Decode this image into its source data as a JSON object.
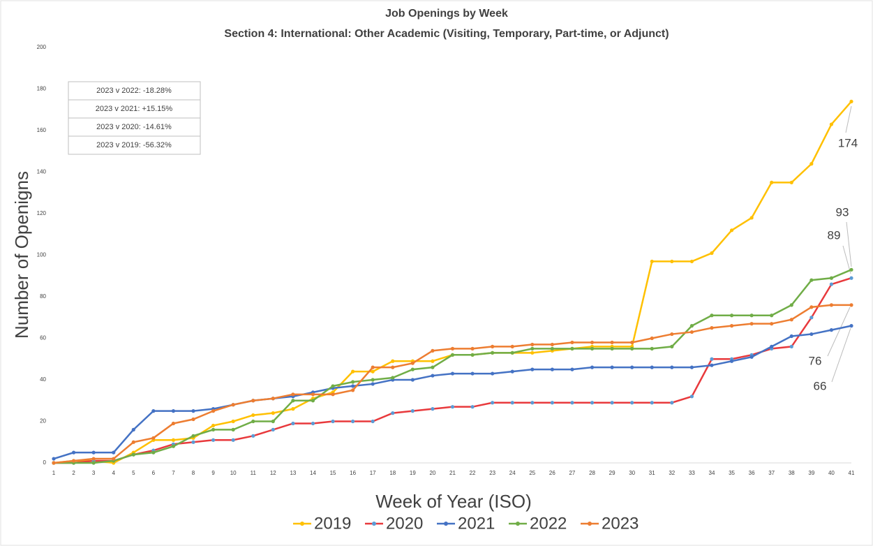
{
  "chart_data": {
    "type": "line",
    "title": "Job Openings by Week",
    "subtitle": "Section 4: International: Other Academic (Visiting, Temporary, Part-time, or Adjunct)",
    "x_label": "Week of Year (ISO)",
    "y_label": "Number of Openigns",
    "categories": [
      "1",
      "2",
      "3",
      "4",
      "5",
      "6",
      "7",
      "8",
      "9",
      "10",
      "11",
      "12",
      "13",
      "14",
      "15",
      "16",
      "17",
      "18",
      "19",
      "20",
      "21",
      "22",
      "23",
      "24",
      "25",
      "26",
      "27",
      "28",
      "29",
      "30",
      "31",
      "32",
      "33",
      "34",
      "35",
      "36",
      "37",
      "38",
      "39",
      "40",
      "41"
    ],
    "series": [
      {
        "name": "2019",
        "color": "#ffc000",
        "values": [
          0,
          1,
          1,
          0,
          5,
          11,
          11,
          12,
          18,
          20,
          23,
          24,
          26,
          31,
          34,
          44,
          44,
          49,
          49,
          49,
          52,
          52,
          53,
          53,
          53,
          54,
          55,
          56,
          56,
          56,
          97,
          97,
          97,
          101,
          112,
          118,
          135,
          135,
          144,
          163,
          174
        ]
      },
      {
        "name": "2020",
        "color": "#e8393c",
        "marker_color": "#5b9bd5",
        "values": [
          0,
          0,
          1,
          1,
          4,
          6,
          9,
          10,
          11,
          11,
          13,
          16,
          19,
          19,
          20,
          20,
          20,
          24,
          25,
          26,
          27,
          27,
          29,
          29,
          29,
          29,
          29,
          29,
          29,
          29,
          29,
          29,
          32,
          50,
          50,
          52,
          55,
          56,
          70,
          86,
          89
        ]
      },
      {
        "name": "2021",
        "color": "#4472c4",
        "values": [
          2,
          5,
          5,
          5,
          16,
          25,
          25,
          25,
          26,
          28,
          30,
          31,
          32,
          34,
          36,
          37,
          38,
          40,
          40,
          42,
          43,
          43,
          43,
          44,
          45,
          45,
          45,
          46,
          46,
          46,
          46,
          46,
          46,
          47,
          49,
          51,
          56,
          61,
          62,
          64,
          66
        ]
      },
      {
        "name": "2022",
        "color": "#70ad47",
        "values": [
          0,
          0,
          0,
          1,
          4,
          5,
          8,
          13,
          16,
          16,
          20,
          20,
          30,
          30,
          37,
          39,
          40,
          41,
          45,
          46,
          52,
          52,
          53,
          53,
          55,
          55,
          55,
          55,
          55,
          55,
          55,
          56,
          66,
          71,
          71,
          71,
          71,
          76,
          88,
          89,
          93
        ]
      },
      {
        "name": "2023",
        "color": "#ed7d31",
        "values": [
          0,
          1,
          2,
          2,
          10,
          12,
          19,
          21,
          25,
          28,
          30,
          31,
          33,
          33,
          33,
          35,
          46,
          46,
          48,
          54,
          55,
          55,
          56,
          56,
          57,
          57,
          58,
          58,
          58,
          58,
          60,
          62,
          63,
          65,
          66,
          67,
          67,
          69,
          75,
          76,
          76
        ]
      }
    ],
    "ylim": [
      0,
      200
    ],
    "yticks": [
      0,
      20,
      40,
      60,
      80,
      100,
      120,
      140,
      160,
      180,
      200
    ],
    "grid": false,
    "annotations": [
      "174",
      "93",
      "89",
      "76",
      "66"
    ],
    "comparisons": [
      "2023 v 2022: -18.28%",
      "2023 v 2021: +15.15%",
      "2023 v 2020: -14.61%",
      "2023 v 2019: -56.32%"
    ]
  }
}
